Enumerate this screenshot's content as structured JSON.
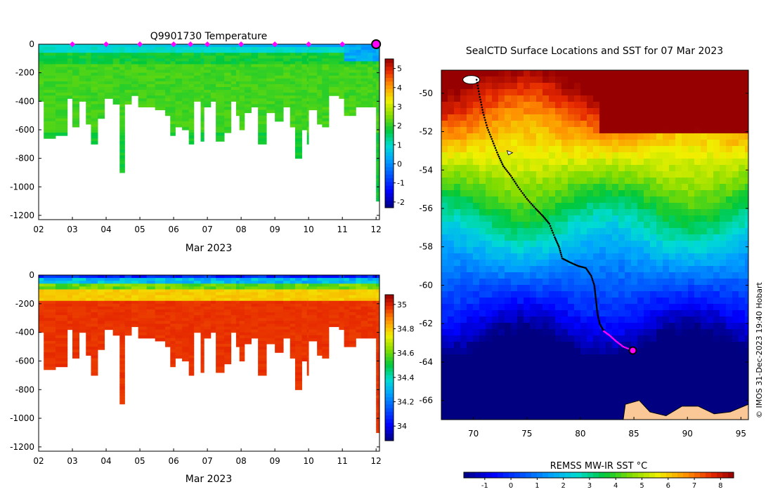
{
  "chart_data": [
    {
      "type": "heatmap",
      "title": "Q9901730  Temperature",
      "xlabel": "Mar 2023",
      "ylabel": "",
      "x_ticks": [
        "02",
        "03",
        "04",
        "05",
        "06",
        "07",
        "08",
        "09",
        "10",
        "11",
        "12"
      ],
      "y_ticks": [
        0,
        -200,
        -400,
        -600,
        -800,
        -1000,
        -1200
      ],
      "ylim": [
        -1230,
        0
      ],
      "xlim": [
        2,
        12.1
      ],
      "colorbar": {
        "min": -2.3,
        "max": 5.5,
        "ticks": [
          5,
          4,
          3,
          2,
          1,
          0,
          -1,
          -2
        ]
      },
      "marker_days": [
        3,
        4,
        5,
        6,
        6.5,
        7,
        8,
        9,
        10,
        11
      ],
      "current_day": 12,
      "profile_depths": [
        [
          2.0,
          400
        ],
        [
          2.15,
          655
        ],
        [
          2.5,
          640
        ],
        [
          2.85,
          370
        ],
        [
          3.0,
          580
        ],
        [
          3.2,
          390
        ],
        [
          3.4,
          560
        ],
        [
          3.55,
          685
        ],
        [
          3.75,
          520
        ],
        [
          3.95,
          370
        ],
        [
          4.2,
          410
        ],
        [
          4.4,
          885
        ],
        [
          4.55,
          420
        ],
        [
          4.75,
          360
        ],
        [
          4.95,
          430
        ],
        [
          5.2,
          440
        ],
        [
          5.45,
          460
        ],
        [
          5.75,
          490
        ],
        [
          5.9,
          625
        ],
        [
          6.05,
          570
        ],
        [
          6.25,
          590
        ],
        [
          6.45,
          700
        ],
        [
          6.6,
          390
        ],
        [
          6.8,
          680
        ],
        [
          6.9,
          430
        ],
        [
          7.1,
          390
        ],
        [
          7.25,
          680
        ],
        [
          7.5,
          610
        ],
        [
          7.7,
          400
        ],
        [
          7.85,
          490
        ],
        [
          7.95,
          600
        ],
        [
          8.1,
          470
        ],
        [
          8.3,
          430
        ],
        [
          8.5,
          700
        ],
        [
          8.75,
          470
        ],
        [
          9.0,
          525
        ],
        [
          9.25,
          430
        ],
        [
          9.45,
          570
        ],
        [
          9.6,
          790
        ],
        [
          9.8,
          590
        ],
        [
          9.95,
          700
        ],
        [
          10.0,
          460
        ],
        [
          10.25,
          560
        ],
        [
          10.4,
          570
        ],
        [
          10.6,
          350
        ],
        [
          10.9,
          380
        ],
        [
          11.05,
          500
        ],
        [
          11.2,
          500
        ],
        [
          11.4,
          430
        ],
        [
          11.55,
          430
        ],
        [
          11.75,
          430
        ],
        [
          11.9,
          430
        ],
        [
          12.0,
          1100
        ]
      ]
    },
    {
      "type": "heatmap",
      "title": "",
      "xlabel": "Mar 2023",
      "ylabel": "",
      "x_ticks": [
        "02",
        "03",
        "04",
        "05",
        "06",
        "07",
        "08",
        "09",
        "10",
        "11",
        "12"
      ],
      "y_ticks": [
        0,
        -200,
        -400,
        -600,
        -800,
        -1000,
        -1200
      ],
      "ylim": [
        -1230,
        0
      ],
      "xlim": [
        2,
        12.1
      ],
      "colorbar": {
        "min": 33.88,
        "max": 35.08,
        "ticks": [
          35,
          34.8,
          34.6,
          34.4,
          34.2,
          34
        ]
      }
    },
    {
      "type": "map",
      "title": "SealCTD Surface Locations and SST for 07 Mar 2023",
      "x_ticks": [
        70,
        75,
        80,
        85,
        90,
        95
      ],
      "y_ticks": [
        -50,
        -52,
        -54,
        -56,
        -58,
        -60,
        -62,
        -64,
        -66
      ],
      "xlim": [
        67,
        95.7
      ],
      "ylim": [
        -67,
        -48.8
      ],
      "track": [
        [
          70.3,
          -49.3
        ],
        [
          70.6,
          -50.2
        ],
        [
          70.9,
          -51.0
        ],
        [
          71.3,
          -51.8
        ],
        [
          71.8,
          -52.5
        ],
        [
          72.3,
          -53.2
        ],
        [
          72.8,
          -53.8
        ],
        [
          73.5,
          -54.3
        ],
        [
          74.2,
          -54.9
        ],
        [
          75.0,
          -55.5
        ],
        [
          75.8,
          -56.0
        ],
        [
          76.5,
          -56.4
        ],
        [
          77.1,
          -56.8
        ],
        [
          77.6,
          -57.5
        ],
        [
          78.0,
          -58.0
        ],
        [
          78.3,
          -58.6
        ],
        [
          79.0,
          -58.8
        ],
        [
          79.8,
          -59.0
        ],
        [
          80.5,
          -59.1
        ],
        [
          81.0,
          -59.5
        ],
        [
          81.3,
          -60.0
        ],
        [
          81.4,
          -60.5
        ],
        [
          81.5,
          -61.0
        ],
        [
          81.6,
          -61.5
        ],
        [
          81.8,
          -62.0
        ],
        [
          82.2,
          -62.4
        ],
        [
          82.7,
          -62.6
        ],
        [
          83.3,
          -62.9
        ],
        [
          84.0,
          -63.2
        ],
        [
          84.9,
          -63.4
        ]
      ],
      "track_recent_from": 25,
      "current": [
        84.9,
        -63.4
      ],
      "colorbar": {
        "label": "REMSS MW-IR SST °C",
        "min": -1.8,
        "max": 8.5,
        "ticks": [
          -1,
          0,
          1,
          2,
          3,
          4,
          5,
          6,
          7,
          8
        ]
      },
      "credit": "© IMOS 31-Dec-2023 19:40 Hobart"
    }
  ],
  "colors": {
    "land": "#f9c896",
    "marker": "#ff00ff",
    "track": "#000000"
  }
}
